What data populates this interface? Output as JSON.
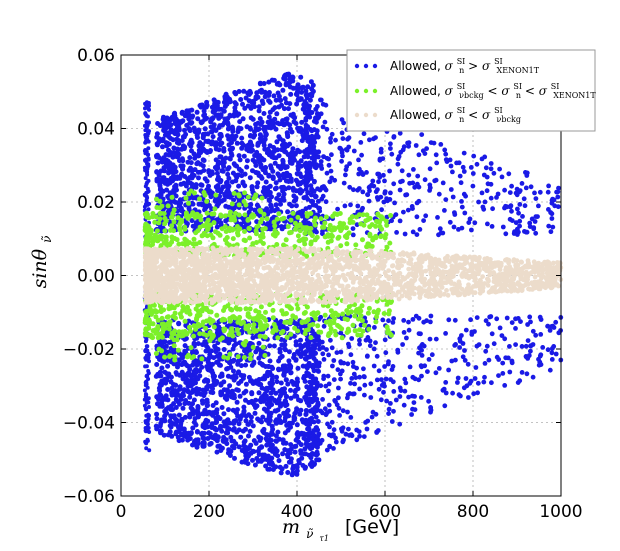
{
  "chart_data": {
    "type": "scatter",
    "x_label": "m",
    "x_label_sub": "ν̃",
    "x_label_subsub": "τ1",
    "x_label_unit": "[GeV]",
    "y_label": "sinθ",
    "y_label_sub": "ν̃",
    "xlim": [
      0,
      1000
    ],
    "ylim": [
      -0.06,
      0.06
    ],
    "x_ticks": [
      0,
      200,
      400,
      600,
      800,
      1000
    ],
    "x_tick_labels": [
      "0",
      "200",
      "400",
      "600",
      "800",
      "1000"
    ],
    "y_ticks": [
      0.06,
      0.04,
      0.02,
      0.0,
      -0.02,
      -0.04,
      -0.06
    ],
    "y_tick_labels": [
      "0.06",
      "0.04",
      "0.02",
      "0.00",
      "−0.02",
      "−0.04",
      "−0.06"
    ],
    "grid": true,
    "legend_position": "top-right",
    "series": [
      {
        "name": "Allowed, σn^SI > σ^SI_XENON1T",
        "legend_prefix": "Allowed, ",
        "legend_sym1": "σ",
        "legend_sup1": "SI",
        "legend_sub1": "n",
        "legend_op": " >",
        "legend_sym2": "σ",
        "legend_sup2": "SI",
        "legend_sub2": "XENON1T",
        "color": "#1a1ae6",
        "region": "|sinθ| from 0.01 to 0.055 (dense up to m≈450 GeV), sparse tail to m≈1000 GeV"
      },
      {
        "name": "Allowed, σ^SI_νbckg < σn^SI < σ^SI_XENON1T",
        "legend_prefix": "Allowed, ",
        "legend_sym1": "σ",
        "legend_sup1": "SI",
        "legend_sub1": "νbckg",
        "legend_op": " <",
        "legend_sym2": "σ",
        "legend_sup2": "SI",
        "legend_sub2": "n",
        "legend_op2": " <",
        "legend_sym3": "σ",
        "legend_sup3": "SI",
        "legend_sub3": "XENON1T",
        "color": "#7cf02a",
        "region": "|sinθ| ≈ 0.005 to 0.02, up to m≈650 GeV"
      },
      {
        "name": "Allowed, σn^SI < σ^SI_νbckg",
        "legend_prefix": "Allowed, ",
        "legend_sym1": "σ",
        "legend_sup1": "SI",
        "legend_sub1": "n",
        "legend_op": " <",
        "legend_sym2": "σ",
        "legend_sup2": "SI",
        "legend_sub2": "νbckg",
        "color": "#ecdccb",
        "region": "|sinθ| < 0.007, up to m≈1000 GeV"
      }
    ]
  }
}
